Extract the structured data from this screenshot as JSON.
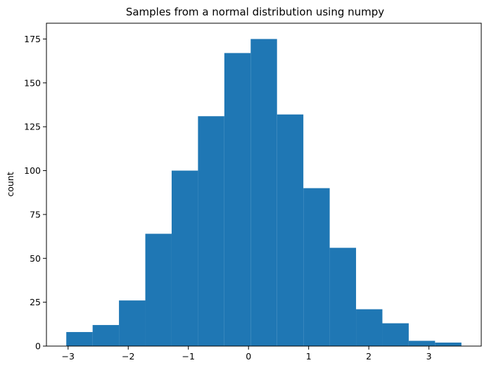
{
  "chart_data": {
    "type": "bar",
    "subtype": "histogram",
    "title": "Samples from a normal distribution using numpy",
    "xlabel": "",
    "ylabel": "count",
    "bin_edges": [
      -3.03,
      -2.592,
      -2.154,
      -1.716,
      -1.278,
      -0.84,
      -0.402,
      0.036,
      0.474,
      0.912,
      1.35,
      1.788,
      2.226,
      2.664,
      3.102,
      3.54
    ],
    "values": [
      8,
      12,
      26,
      64,
      100,
      131,
      167,
      175,
      132,
      90,
      56,
      21,
      13,
      3,
      2
    ],
    "xlim": [
      -3.36,
      3.87
    ],
    "ylim": [
      0,
      184
    ],
    "xticks": [
      -3,
      -2,
      -1,
      0,
      1,
      2,
      3
    ],
    "xtick_labels": [
      "−3",
      "−2",
      "−1",
      "0",
      "1",
      "2",
      "3"
    ],
    "yticks": [
      0,
      25,
      50,
      75,
      100,
      125,
      150,
      175
    ],
    "ytick_labels": [
      "0",
      "25",
      "50",
      "75",
      "100",
      "125",
      "150",
      "175"
    ],
    "grid": false,
    "bar_color": "#1f77b4"
  }
}
